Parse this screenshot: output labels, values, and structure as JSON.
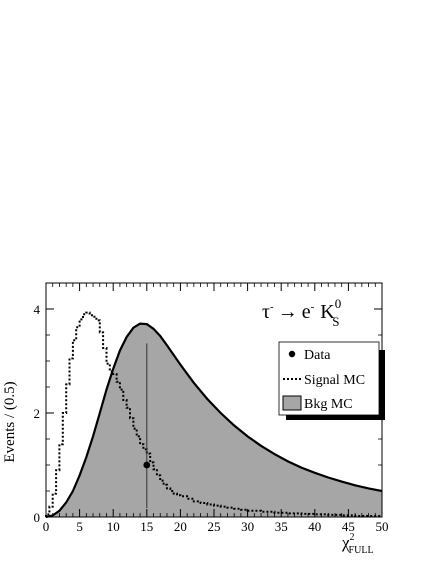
{
  "chart_data": {
    "type": "area",
    "xlabel": "χ",
    "xlabel_sup": "2",
    "xlabel_sub": "FULL",
    "ylabel": "Events / (0.5)",
    "xlim": [
      0,
      50
    ],
    "ylim": [
      0,
      4.5
    ],
    "x_ticks": [
      0,
      5,
      10,
      15,
      20,
      25,
      30,
      35,
      40,
      45,
      50
    ],
    "y_ticks": [
      0,
      2,
      4
    ],
    "grid": false,
    "legend_position": "right",
    "annotation": {
      "tau": "τ",
      "tau_sup": "-",
      "arrow": "→",
      "e": "e",
      "e_sup": "-",
      "k": "K",
      "k_sup": "0",
      "k_sub": "S"
    },
    "series": [
      {
        "name": "Bkg MC",
        "style": "filled",
        "fill": "#a6a6a6",
        "x": [
          0,
          1,
          2,
          3,
          4,
          5,
          6,
          7,
          8,
          9,
          10,
          11,
          12,
          13,
          14,
          15,
          16,
          17,
          18,
          20,
          22,
          24,
          26,
          28,
          30,
          32,
          34,
          36,
          38,
          40,
          42,
          44,
          46,
          48,
          50
        ],
        "y": [
          0,
          0.03,
          0.12,
          0.28,
          0.5,
          0.8,
          1.15,
          1.55,
          2.0,
          2.45,
          2.85,
          3.2,
          3.46,
          3.64,
          3.72,
          3.71,
          3.62,
          3.48,
          3.3,
          2.93,
          2.58,
          2.27,
          2.0,
          1.76,
          1.55,
          1.37,
          1.21,
          1.07,
          0.95,
          0.85,
          0.76,
          0.68,
          0.61,
          0.55,
          0.5
        ]
      },
      {
        "name": "Signal MC",
        "style": "step-dotted",
        "x": [
          0,
          0.5,
          1,
          1.5,
          2,
          2.5,
          3,
          3.5,
          4,
          4.5,
          5,
          5.5,
          6,
          6.5,
          7,
          7.5,
          8,
          8.5,
          9,
          9.5,
          10,
          10.5,
          11,
          11.5,
          12,
          12.5,
          13,
          13.5,
          14,
          14.5,
          15,
          15.5,
          16,
          16.5,
          17,
          17.5,
          18,
          18.5,
          19,
          19.5,
          20,
          21,
          22,
          23,
          24,
          25,
          26,
          27,
          28,
          29,
          30,
          32,
          34,
          36,
          38,
          40,
          42,
          44,
          46,
          48,
          49.5
        ],
        "y": [
          0.05,
          0.2,
          0.45,
          0.9,
          1.4,
          2.0,
          2.55,
          3.05,
          3.4,
          3.65,
          3.8,
          3.9,
          3.93,
          3.88,
          3.85,
          3.78,
          3.55,
          3.25,
          2.95,
          2.8,
          2.75,
          2.6,
          2.45,
          2.25,
          2.1,
          1.9,
          1.7,
          1.55,
          1.4,
          1.3,
          1.22,
          1.05,
          0.92,
          0.8,
          0.7,
          0.62,
          0.55,
          0.5,
          0.45,
          0.42,
          0.4,
          0.35,
          0.3,
          0.27,
          0.24,
          0.22,
          0.2,
          0.18,
          0.16,
          0.14,
          0.12,
          0.1,
          0.08,
          0.07,
          0.06,
          0.05,
          0.04,
          0.03,
          0.02,
          0.02,
          0.02
        ]
      },
      {
        "name": "Data",
        "style": "points",
        "x": [
          15
        ],
        "y": [
          1.0
        ],
        "y_err_low": [
          0.17
        ],
        "y_err_high": [
          3.34
        ]
      }
    ]
  }
}
